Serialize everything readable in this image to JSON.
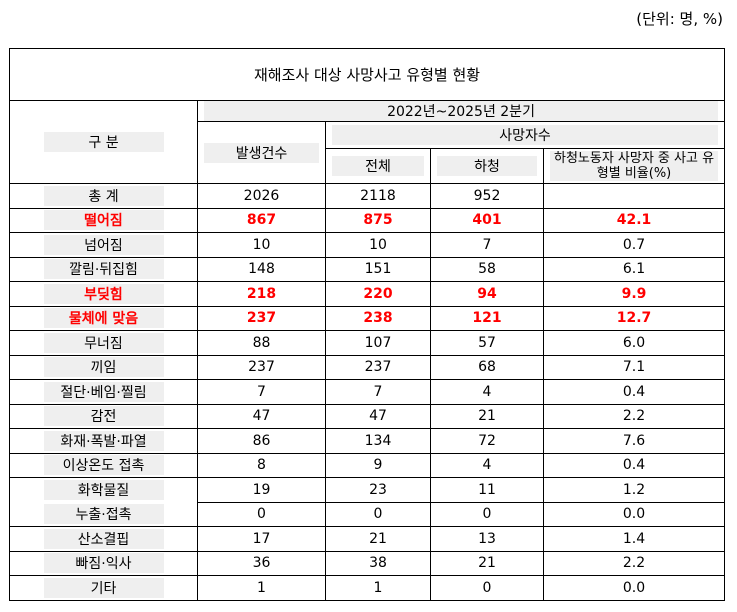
{
  "unit_note": "(단위: 명, %)",
  "table": {
    "title": "재해조사 대상 사망사고 유형별 현황",
    "header": {
      "category": "구 분",
      "period": "2022년~2025년 2분기",
      "occurrences": "발생건수",
      "deaths": "사망자수",
      "total": "전체",
      "subcontract": "하청",
      "ratio": "하청노동자 사망자 중 사고 유형별 비율(%)"
    },
    "rows": [
      {
        "label": "총 계",
        "values": [
          "2026",
          "2118",
          "952"
        ]
      },
      {
        "label": "떨어짐",
        "values": [
          "867",
          "875",
          "401",
          "42.1"
        ],
        "color": "#ff0000"
      },
      {
        "label": "넘어짐",
        "values": [
          "10",
          "10",
          "7",
          "0.7"
        ]
      },
      {
        "label": "깔림·뒤집힘",
        "values": [
          "148",
          "151",
          "58",
          "6.1"
        ]
      },
      {
        "label": "부딪힘",
        "values": [
          "218",
          "220",
          "94",
          "9.9"
        ],
        "color": "#ff0000"
      },
      {
        "label": "물체에 맞음",
        "values": [
          "237",
          "238",
          "121",
          "12.7"
        ],
        "color": "#ff0000"
      },
      {
        "label": "무너짐",
        "values": [
          "88",
          "107",
          "57",
          "6.0"
        ]
      },
      {
        "label": "끼임",
        "values": [
          "237",
          "237",
          "68",
          "7.1"
        ]
      },
      {
        "label": "절단·베임·찔림",
        "values": [
          "7",
          "7",
          "4",
          "0.4"
        ]
      },
      {
        "label": "감전",
        "values": [
          "47",
          "47",
          "21",
          "2.2"
        ]
      },
      {
        "label": "화재·폭발·파열",
        "values": [
          "86",
          "134",
          "72",
          "7.6"
        ]
      },
      {
        "label": "이상온도 접촉",
        "values": [
          "8",
          "9",
          "4",
          "0.4"
        ]
      },
      {
        "label_lines": [
          "화학물질",
          "누출·접촉"
        ],
        "subrows": [
          [
            "19",
            "23",
            "11",
            "1.2"
          ],
          [
            "0",
            "0",
            "0",
            "0.0"
          ]
        ]
      },
      {
        "label": "산소결핍",
        "values": [
          "17",
          "21",
          "13",
          "1.4"
        ]
      },
      {
        "label": "빠짐·익사",
        "values": [
          "36",
          "38",
          "21",
          "2.2"
        ]
      },
      {
        "label": "기타",
        "values": [
          "1",
          "1",
          "0",
          "0.0"
        ]
      }
    ]
  }
}
